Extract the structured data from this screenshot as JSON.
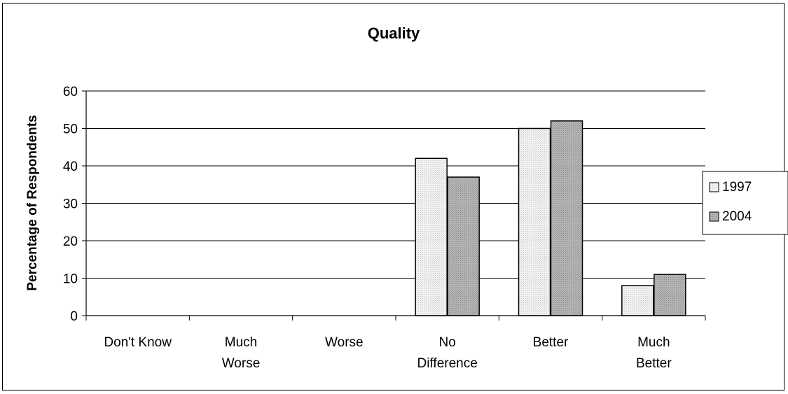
{
  "chart_data": {
    "type": "bar",
    "title": "Quality",
    "xlabel": "",
    "ylabel": "Percentage of Respondents",
    "ylim": [
      0,
      60
    ],
    "yticks": [
      0,
      10,
      20,
      30,
      40,
      50,
      60
    ],
    "grid": true,
    "legend_position": "right",
    "categories": [
      [
        "Don't Know"
      ],
      [
        "Much",
        "Worse"
      ],
      [
        "Worse"
      ],
      [
        "No",
        "Difference"
      ],
      [
        "Better"
      ],
      [
        "Much",
        "Better"
      ]
    ],
    "series": [
      {
        "name": "1997",
        "values": [
          0,
          0,
          0,
          42,
          50,
          8
        ],
        "color": "#e8e8e8"
      },
      {
        "name": "2004",
        "values": [
          0,
          0,
          0,
          37,
          52,
          11
        ],
        "color": "#a9a9a9"
      }
    ]
  }
}
